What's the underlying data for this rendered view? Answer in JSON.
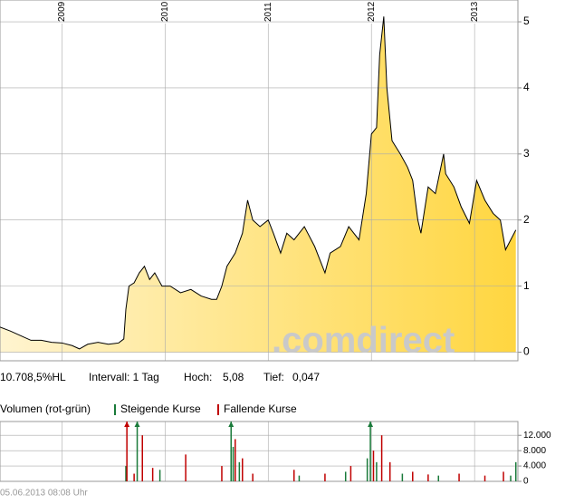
{
  "info": [
    "10.708,5%HL",
    "Intervall: 1 Tag",
    "Hoch:",
    "5,08",
    "Tief:",
    "0,047"
  ],
  "watermark": ".comdirect",
  "footer": "05.06.2013 08:08 Uhr",
  "chart_data": [
    {
      "type": "area",
      "color": "#000000",
      "fill_from": "#fff4d0",
      "fill_to": "#ffd640",
      "xlim": [
        2008.4,
        2013.42
      ],
      "xticks": [
        2009,
        2010,
        2011,
        2012,
        2013
      ],
      "ylim": [
        -0.13,
        5.33
      ],
      "yticks": [
        0,
        1,
        2,
        3,
        4,
        5
      ],
      "grid": true,
      "x": [
        2008.4,
        2008.5,
        2008.6,
        2008.7,
        2008.8,
        2008.9,
        2009.0,
        2009.1,
        2009.17,
        2009.25,
        2009.35,
        2009.45,
        2009.55,
        2009.6,
        2009.62,
        2009.65,
        2009.7,
        2009.75,
        2009.8,
        2009.85,
        2009.9,
        2009.97,
        2010.05,
        2010.15,
        2010.25,
        2010.35,
        2010.45,
        2010.5,
        2010.55,
        2010.6,
        2010.68,
        2010.75,
        2010.8,
        2010.85,
        2010.92,
        2011.0,
        2011.05,
        2011.12,
        2011.18,
        2011.25,
        2011.35,
        2011.45,
        2011.55,
        2011.6,
        2011.7,
        2011.78,
        2011.88,
        2011.95,
        2012.0,
        2012.05,
        2012.08,
        2012.12,
        2012.15,
        2012.2,
        2012.28,
        2012.35,
        2012.4,
        2012.45,
        2012.48,
        2012.55,
        2012.62,
        2012.7,
        2012.72,
        2012.8,
        2012.87,
        2012.95,
        2013.02,
        2013.1,
        2013.18,
        2013.25,
        2013.3,
        2013.35,
        2013.4
      ],
      "values": [
        0.38,
        0.32,
        0.25,
        0.18,
        0.18,
        0.15,
        0.14,
        0.1,
        0.05,
        0.12,
        0.15,
        0.12,
        0.14,
        0.2,
        0.65,
        1.0,
        1.05,
        1.2,
        1.3,
        1.1,
        1.2,
        1.0,
        1.0,
        0.9,
        0.95,
        0.85,
        0.8,
        0.8,
        1.0,
        1.3,
        1.5,
        1.8,
        2.3,
        2.0,
        1.9,
        2.0,
        1.8,
        1.5,
        1.8,
        1.7,
        1.9,
        1.6,
        1.2,
        1.5,
        1.6,
        1.9,
        1.7,
        2.4,
        3.3,
        3.4,
        4.5,
        5.08,
        4.0,
        3.2,
        3.0,
        2.8,
        2.6,
        2.0,
        1.8,
        2.5,
        2.4,
        3.0,
        2.7,
        2.5,
        2.2,
        1.95,
        2.6,
        2.3,
        2.1,
        2.0,
        1.55,
        1.7,
        1.85
      ]
    },
    {
      "type": "bar",
      "title": "Volumen (rot-grün)",
      "xlim": [
        2008.4,
        2013.42
      ],
      "xticks": [
        2009,
        2010,
        2011,
        2012,
        2013
      ],
      "ylim": [
        0,
        15600
      ],
      "yticks": [
        0,
        {
          "value": 4000,
          "label": "4.000"
        },
        {
          "value": 8000,
          "label": "8.000"
        },
        {
          "value": 12000,
          "label": "12.000"
        }
      ],
      "grid": true,
      "series": [
        {
          "name": "Steigende Kurse",
          "color": "#1a7a3a",
          "x": [
            2009.62,
            2009.73,
            2009.95,
            2010.64,
            2010.66,
            2010.72,
            2011.3,
            2011.75,
            2011.96,
            2011.99,
            2012.05,
            2012.3,
            2012.65,
            2013.35,
            2013.4
          ],
          "values": [
            4000,
            16000,
            3000,
            16000,
            9000,
            5000,
            1500,
            2500,
            6000,
            16000,
            5000,
            2000,
            1500,
            1500,
            5000
          ]
        },
        {
          "name": "Fallende Kurse",
          "color": "#c00000",
          "x": [
            2009.63,
            2009.7,
            2009.78,
            2009.88,
            2010.2,
            2010.55,
            2010.68,
            2010.75,
            2010.85,
            2011.25,
            2011.55,
            2011.8,
            2012.02,
            2012.1,
            2012.18,
            2012.4,
            2012.55,
            2012.85,
            2013.1,
            2013.28
          ],
          "values": [
            16000,
            2000,
            12000,
            3500,
            7000,
            4000,
            11000,
            6000,
            2000,
            3000,
            2000,
            4000,
            8000,
            12000,
            5000,
            2500,
            1800,
            2000,
            1500,
            2500
          ]
        }
      ]
    }
  ]
}
